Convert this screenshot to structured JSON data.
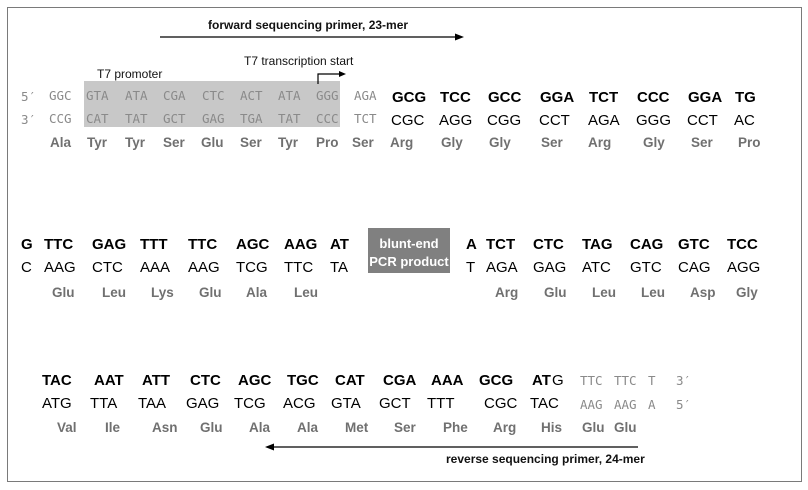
{
  "labels": {
    "forward_primer": "forward sequencing primer, 23-mer",
    "t7_promoter": "T7 promoter",
    "t7_start": "T7 transcription start",
    "blunt_line1": "blunt-end",
    "blunt_line2": "PCR product",
    "reverse_primer": "reverse sequencing primer, 24-mer",
    "end_5": "5′",
    "end_3": "3′",
    "end_3_tail": "3′",
    "end_5_tail": "5′"
  },
  "block1": {
    "top": [
      "GGC",
      "GTA",
      "ATA",
      "CGA",
      "CTC",
      "ACT",
      "ATA",
      "GGG",
      "AGA",
      "GCG",
      "TCC",
      "GCC",
      "GGA",
      "TCT",
      "CCC",
      "GGA",
      "TG"
    ],
    "bottom": [
      "CCG",
      "CAT",
      "TAT",
      "GCT",
      "GAG",
      "TGA",
      "TAT",
      "CCC",
      "TCT",
      "CGC",
      "AGG",
      "CGG",
      "CCT",
      "AGA",
      "GGG",
      "CCT",
      "AC"
    ],
    "aa": [
      "Ala",
      "Tyr",
      "Tyr",
      "Ser",
      "Glu",
      "Ser",
      "Tyr",
      "Pro",
      "Ser",
      "Arg",
      "Gly",
      "Gly",
      "Ser",
      "Arg",
      "Gly",
      "Ser",
      "Pro"
    ]
  },
  "block2": {
    "top_left": [
      "G",
      "TTC",
      "GAG",
      "TTT",
      "TTC",
      "AGC",
      "AAG",
      "AT"
    ],
    "bottom_left": [
      "C",
      "AAG",
      "CTC",
      "AAA",
      "AAG",
      "TCG",
      "TTC",
      "TA"
    ],
    "aa_left": [
      "Glu",
      "Leu",
      "Lys",
      "Glu",
      "Ala",
      "Leu"
    ],
    "top_right": [
      "A",
      "TCT",
      "CTC",
      "TAG",
      "CAG",
      "GTC",
      "TCC"
    ],
    "bottom_right": [
      "T",
      "AGA",
      "GAG",
      "ATC",
      "GTC",
      "CAG",
      "AGG"
    ],
    "aa_right": [
      "Arg",
      "Glu",
      "Leu",
      "Leu",
      "Asp",
      "Gly"
    ]
  },
  "block3": {
    "top": [
      "TAC",
      "AAT",
      "ATT",
      "CTC",
      "AGC",
      "TGC",
      "CAT",
      "CGA",
      "AAA",
      "GCG",
      "AT"
    ],
    "top_g": "G",
    "top_tail": [
      "TTC",
      "TTC",
      "T"
    ],
    "bottom": [
      "ATG",
      "TTA",
      "TAA",
      "GAG",
      "TCG",
      "ACG",
      "GTA",
      "GCT",
      "TTT",
      "CGC",
      "TAC"
    ],
    "bottom_tail": [
      "AAG",
      "AAG",
      "A"
    ],
    "aa": [
      "Val",
      "Ile",
      "Asn",
      "Glu",
      "Ala",
      "Ala",
      "Met",
      "Ser",
      "Phe",
      "Arg",
      "His",
      "Glu",
      "Glu"
    ]
  }
}
